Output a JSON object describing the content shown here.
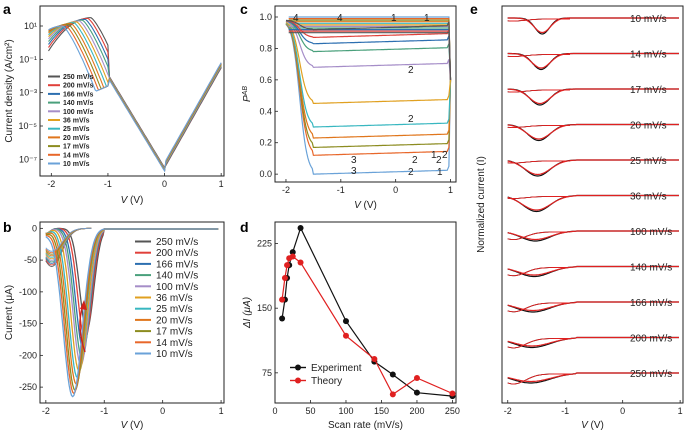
{
  "panel_labels": [
    "a",
    "b",
    "c",
    "d",
    "e"
  ],
  "colors": [
    "#555555",
    "#e0403a",
    "#2c6fb0",
    "#4aa07c",
    "#a58dc8",
    "#e0a020",
    "#38b7c0",
    "#e0761c",
    "#8c8c20",
    "#e8672a",
    "#6aa2d8"
  ],
  "chart_data": [
    {
      "panel": "a",
      "type": "line",
      "ylabel": "Current density (A/cm²)",
      "xlabel": "V",
      "xunit": " (V)",
      "xlim": [
        -2.2,
        1.05
      ],
      "yscale": "log",
      "ylim_log10": [
        -8,
        2.2
      ],
      "xticks": [
        "-2",
        "-1",
        "0",
        "1"
      ],
      "yticks": [
        "10¹",
        "10⁻¹",
        "10⁻³",
        "10⁻⁵",
        "10⁻⁷"
      ],
      "series": [
        {
          "name": "250 mV/s",
          "peak_v": -1.3,
          "peak_log": 1.5
        },
        {
          "name": "200 mV/s",
          "peak_v": -1.35,
          "peak_log": 1.45
        },
        {
          "name": "166 mV/s",
          "peak_v": -1.4,
          "peak_log": 1.4
        },
        {
          "name": "140 mV/s",
          "peak_v": -1.45,
          "peak_log": 1.35
        },
        {
          "name": "100 mV/s",
          "peak_v": -1.5,
          "peak_log": 1.3
        },
        {
          "name": "36 mV/s",
          "peak_v": -1.55,
          "peak_log": 1.25
        },
        {
          "name": "25 mV/s",
          "peak_v": -1.6,
          "peak_log": 1.2
        },
        {
          "name": "20 mV/s",
          "peak_v": -1.65,
          "peak_log": 1.15
        },
        {
          "name": "17 mV/s",
          "peak_v": -1.7,
          "peak_log": 1.1
        },
        {
          "name": "14 mV/s",
          "peak_v": -1.75,
          "peak_log": 1.05
        },
        {
          "name": "10 mV/s",
          "peak_v": -1.8,
          "peak_log": 1.0
        }
      ]
    },
    {
      "panel": "b",
      "type": "line",
      "ylabel": "Current  (μA)",
      "xlabel": "V",
      "xunit": " (V)",
      "xlim": [
        -2.1,
        1.05
      ],
      "ylim": [
        -275,
        10
      ],
      "xticks": [
        -2,
        -1,
        0,
        1
      ],
      "yticks": [
        0,
        -50,
        -100,
        -150,
        -200,
        -250
      ],
      "series": [
        {
          "name": "250 mV/s",
          "peak_v": -1.3,
          "peak_current": -160
        },
        {
          "name": "200 mV/s",
          "peak_v": -1.33,
          "peak_current": -175
        },
        {
          "name": "166 mV/s",
          "peak_v": -1.36,
          "peak_current": -190
        },
        {
          "name": "140 mV/s",
          "peak_v": -1.38,
          "peak_current": -205
        },
        {
          "name": "100 mV/s",
          "peak_v": -1.4,
          "peak_current": -215
        },
        {
          "name": "36 mV/s",
          "peak_v": -1.43,
          "peak_current": -225
        },
        {
          "name": "25 mV/s",
          "peak_v": -1.46,
          "peak_current": -235
        },
        {
          "name": "20 mV/s",
          "peak_v": -1.48,
          "peak_current": -245
        },
        {
          "name": "17 mV/s",
          "peak_v": -1.5,
          "peak_current": -255
        },
        {
          "name": "14 mV/s",
          "peak_v": -1.52,
          "peak_current": -260
        },
        {
          "name": "10 mV/s",
          "peak_v": -1.54,
          "peak_current": -265
        }
      ]
    },
    {
      "panel": "c",
      "type": "line",
      "ylabel": "P",
      "ylabel_sup": "AB",
      "xlabel": "V",
      "xunit": " (V)",
      "xlim": [
        -2.2,
        1.1
      ],
      "ylim": [
        -0.05,
        1.07
      ],
      "xticks": [
        -2,
        -1,
        0,
        1
      ],
      "yticks": [
        "0.0",
        "0.2",
        "0.4",
        "0.6",
        "0.8",
        "1.0"
      ],
      "plateaus": [
        0.0,
        0.12,
        0.17,
        0.23,
        0.3,
        0.45,
        0.68,
        0.78,
        0.83,
        0.87,
        0.92
      ],
      "annotations": [
        "4",
        "4",
        "1",
        "1",
        "2",
        "2",
        "2",
        "2",
        "2",
        "3",
        "3",
        "1",
        "2",
        "1"
      ]
    },
    {
      "panel": "d",
      "type": "line",
      "ylabel": "ΔI (μA)",
      "xlabel": "Scan rate (mV/s)",
      "xlim": [
        0,
        255
      ],
      "ylim": [
        40,
        250
      ],
      "xticks": [
        0,
        50,
        100,
        150,
        200,
        250
      ],
      "yticks": [
        75,
        150,
        225
      ],
      "series": [
        {
          "name": "Experiment",
          "color": "#111111",
          "x": [
            10,
            14,
            17,
            20,
            25,
            36,
            100,
            140,
            166,
            200,
            250
          ],
          "y": [
            138,
            160,
            185,
            200,
            215,
            243,
            135,
            88,
            73,
            52,
            48
          ]
        },
        {
          "name": "Theory",
          "color": "#e02020",
          "x": [
            10,
            14,
            17,
            20,
            25,
            36,
            100,
            140,
            166,
            200,
            250
          ],
          "y": [
            160,
            185,
            200,
            208,
            210,
            203,
            118,
            91,
            50,
            69,
            51
          ]
        }
      ]
    },
    {
      "panel": "e",
      "type": "line",
      "ylabel": "Normalized current (I)",
      "xlabel": "V",
      "xunit": " (V)",
      "xlim": [
        -2.1,
        1.05
      ],
      "xticks": [
        -2,
        -1,
        0,
        1
      ],
      "rows": [
        "10 mV/s",
        "14 mV/s",
        "17 mV/s",
        "20 mV/s",
        "25 mV/s",
        "36 mV/s",
        "100 mV/s",
        "140 mV/s",
        "166 mV/s",
        "200 mV/s",
        "250 mV/s"
      ],
      "series": [
        {
          "name": "Experiment",
          "color": "#111111"
        },
        {
          "name": "Theory",
          "color": "#e02020"
        }
      ]
    }
  ]
}
